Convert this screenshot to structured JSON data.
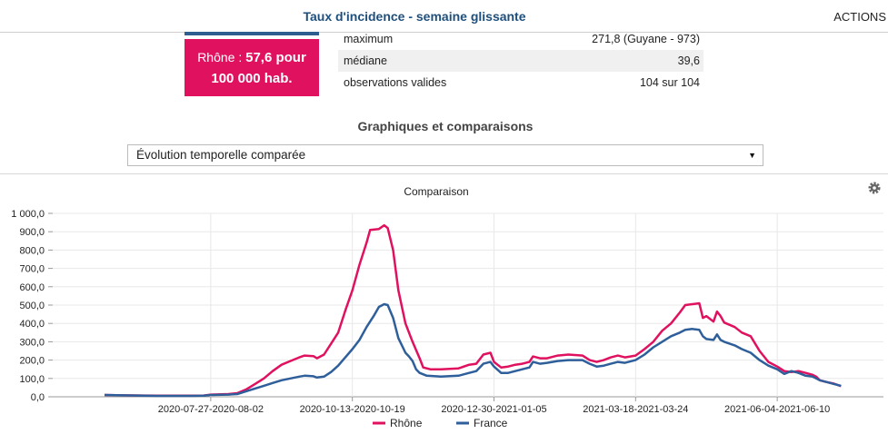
{
  "header": {
    "title": "Taux d'incidence - semaine glissante",
    "actions_label": "ACTIONS"
  },
  "value_box": {
    "prefix": "Rhône : ",
    "value": "57,6 pour",
    "unit": "100 000 hab."
  },
  "stats": [
    {
      "label": "maximum",
      "value": "271,8 (Guyane - 973)"
    },
    {
      "label": "médiane",
      "value": "39,6"
    },
    {
      "label": "observations valides",
      "value": "104 sur 104"
    }
  ],
  "section": {
    "title": "Graphiques et comparaisons"
  },
  "select": {
    "selected": "Évolution temporelle comparée"
  },
  "settings_icon": "gear-icon",
  "colors": {
    "rhone": "#e0115f",
    "france": "#2f5f9a",
    "box_bg": "#e0115f",
    "title": "#1f4f7d"
  },
  "chart_data": {
    "type": "line",
    "title": "Comparaison",
    "ylim": [
      0,
      1000
    ],
    "yticks": [
      "0,0",
      "100,0",
      "200,0",
      "300,0",
      "400,0",
      "500,0",
      "600,0",
      "700,0",
      "800,0",
      "900,0",
      "1 000,0"
    ],
    "xtick_labels": [
      "2020-07-27-2020-08-02",
      "2020-10-13-2020-10-19",
      "2020-12-30-2021-01-05",
      "2021-03-18-2021-03-24",
      "2021-06-04-2021-06-10"
    ],
    "xtick_index": [
      60,
      140,
      220,
      300,
      380
    ],
    "grid": true,
    "legend": "bottom",
    "series": [
      {
        "name": "Rhône",
        "color": "#e0115f",
        "points": [
          [
            0,
            10
          ],
          [
            10,
            8
          ],
          [
            30,
            6
          ],
          [
            50,
            6
          ],
          [
            56,
            7
          ],
          [
            60,
            12
          ],
          [
            70,
            15
          ],
          [
            75,
            20
          ],
          [
            80,
            40
          ],
          [
            85,
            70
          ],
          [
            90,
            100
          ],
          [
            95,
            140
          ],
          [
            100,
            175
          ],
          [
            105,
            195
          ],
          [
            110,
            215
          ],
          [
            113,
            225
          ],
          [
            118,
            222
          ],
          [
            120,
            210
          ],
          [
            124,
            230
          ],
          [
            128,
            290
          ],
          [
            132,
            350
          ],
          [
            136,
            470
          ],
          [
            140,
            580
          ],
          [
            144,
            720
          ],
          [
            148,
            840
          ],
          [
            150,
            910
          ],
          [
            155,
            915
          ],
          [
            158,
            935
          ],
          [
            160,
            920
          ],
          [
            163,
            800
          ],
          [
            166,
            580
          ],
          [
            170,
            400
          ],
          [
            174,
            300
          ],
          [
            178,
            210
          ],
          [
            180,
            160
          ],
          [
            184,
            150
          ],
          [
            190,
            150
          ],
          [
            200,
            155
          ],
          [
            206,
            175
          ],
          [
            210,
            180
          ],
          [
            214,
            230
          ],
          [
            218,
            240
          ],
          [
            220,
            190
          ],
          [
            224,
            160
          ],
          [
            228,
            165
          ],
          [
            232,
            175
          ],
          [
            236,
            180
          ],
          [
            240,
            190
          ],
          [
            242,
            220
          ],
          [
            246,
            210
          ],
          [
            250,
            210
          ],
          [
            256,
            225
          ],
          [
            262,
            230
          ],
          [
            270,
            225
          ],
          [
            274,
            200
          ],
          [
            278,
            190
          ],
          [
            282,
            200
          ],
          [
            286,
            215
          ],
          [
            290,
            225
          ],
          [
            294,
            215
          ],
          [
            300,
            225
          ],
          [
            305,
            260
          ],
          [
            310,
            300
          ],
          [
            315,
            360
          ],
          [
            320,
            400
          ],
          [
            325,
            460
          ],
          [
            328,
            500
          ],
          [
            332,
            505
          ],
          [
            336,
            510
          ],
          [
            338,
            430
          ],
          [
            340,
            440
          ],
          [
            344,
            410
          ],
          [
            346,
            465
          ],
          [
            348,
            440
          ],
          [
            350,
            405
          ],
          [
            356,
            380
          ],
          [
            360,
            350
          ],
          [
            365,
            330
          ],
          [
            370,
            250
          ],
          [
            375,
            190
          ],
          [
            380,
            165
          ],
          [
            384,
            140
          ],
          [
            388,
            135
          ],
          [
            392,
            140
          ],
          [
            396,
            130
          ],
          [
            400,
            120
          ],
          [
            402,
            110
          ],
          [
            404,
            90
          ],
          [
            408,
            80
          ],
          [
            412,
            72
          ],
          [
            416,
            58
          ]
        ]
      },
      {
        "name": "France",
        "color": "#2f5f9a",
        "points": [
          [
            0,
            10
          ],
          [
            10,
            8
          ],
          [
            30,
            5
          ],
          [
            50,
            5
          ],
          [
            56,
            6
          ],
          [
            60,
            10
          ],
          [
            70,
            12
          ],
          [
            75,
            15
          ],
          [
            80,
            30
          ],
          [
            85,
            45
          ],
          [
            90,
            60
          ],
          [
            95,
            75
          ],
          [
            100,
            90
          ],
          [
            105,
            100
          ],
          [
            110,
            110
          ],
          [
            113,
            115
          ],
          [
            118,
            112
          ],
          [
            120,
            105
          ],
          [
            124,
            110
          ],
          [
            128,
            135
          ],
          [
            132,
            170
          ],
          [
            136,
            215
          ],
          [
            140,
            260
          ],
          [
            144,
            310
          ],
          [
            148,
            380
          ],
          [
            152,
            440
          ],
          [
            155,
            490
          ],
          [
            158,
            505
          ],
          [
            160,
            500
          ],
          [
            163,
            430
          ],
          [
            166,
            320
          ],
          [
            170,
            240
          ],
          [
            172,
            220
          ],
          [
            174,
            195
          ],
          [
            176,
            150
          ],
          [
            178,
            130
          ],
          [
            182,
            115
          ],
          [
            190,
            110
          ],
          [
            200,
            115
          ],
          [
            206,
            130
          ],
          [
            210,
            140
          ],
          [
            214,
            180
          ],
          [
            218,
            190
          ],
          [
            220,
            165
          ],
          [
            224,
            130
          ],
          [
            228,
            130
          ],
          [
            232,
            140
          ],
          [
            236,
            150
          ],
          [
            240,
            160
          ],
          [
            242,
            190
          ],
          [
            246,
            180
          ],
          [
            250,
            185
          ],
          [
            256,
            195
          ],
          [
            262,
            200
          ],
          [
            270,
            200
          ],
          [
            274,
            180
          ],
          [
            278,
            165
          ],
          [
            282,
            170
          ],
          [
            286,
            180
          ],
          [
            290,
            190
          ],
          [
            294,
            185
          ],
          [
            300,
            200
          ],
          [
            305,
            230
          ],
          [
            310,
            270
          ],
          [
            315,
            300
          ],
          [
            320,
            330
          ],
          [
            325,
            350
          ],
          [
            328,
            365
          ],
          [
            332,
            370
          ],
          [
            336,
            365
          ],
          [
            338,
            330
          ],
          [
            340,
            315
          ],
          [
            344,
            310
          ],
          [
            346,
            340
          ],
          [
            348,
            310
          ],
          [
            350,
            300
          ],
          [
            356,
            280
          ],
          [
            360,
            260
          ],
          [
            365,
            240
          ],
          [
            370,
            200
          ],
          [
            375,
            170
          ],
          [
            380,
            150
          ],
          [
            384,
            125
          ],
          [
            388,
            140
          ],
          [
            392,
            130
          ],
          [
            396,
            115
          ],
          [
            400,
            110
          ],
          [
            402,
            100
          ],
          [
            404,
            90
          ],
          [
            408,
            80
          ],
          [
            412,
            70
          ],
          [
            416,
            60
          ]
        ]
      }
    ]
  }
}
